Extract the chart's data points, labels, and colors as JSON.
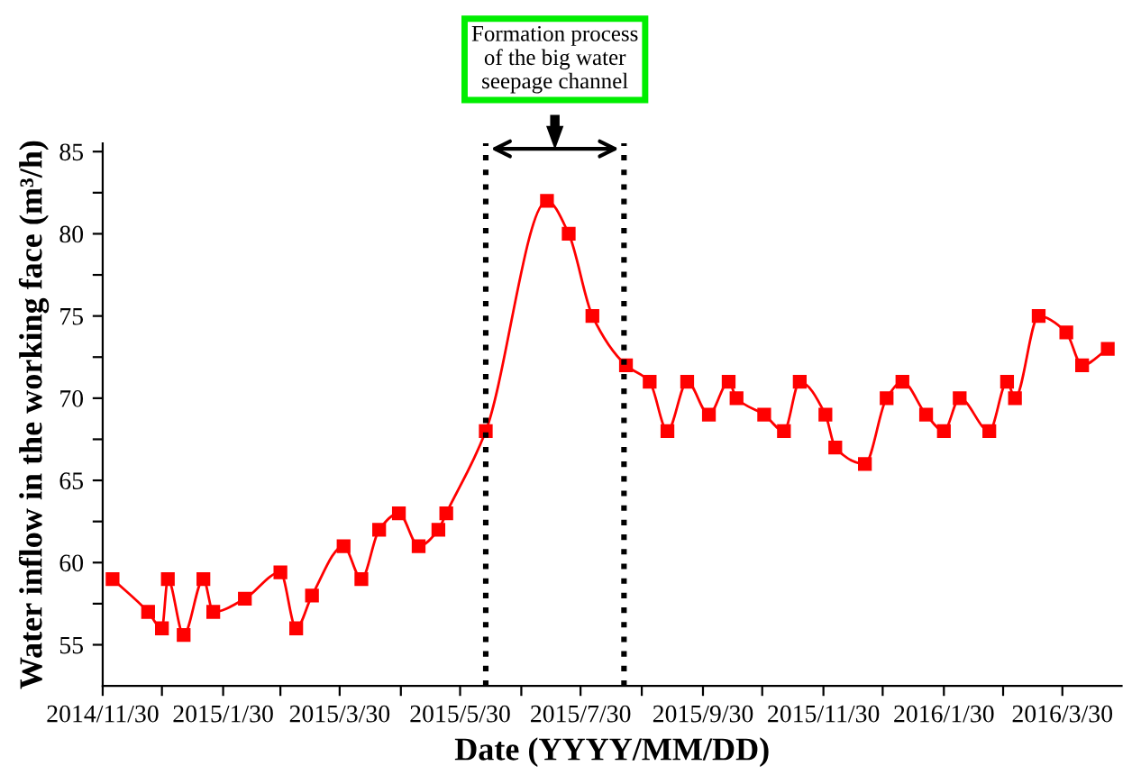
{
  "chart_data": {
    "type": "line",
    "xlabel": "Date (YYYY/MM/DD)",
    "ylabel": "Water inflow in the working face (m³/h)",
    "x": [
      "2014-12-05",
      "2014-12-23",
      "2014-12-30",
      "2015-01-02",
      "2015-01-10",
      "2015-01-20",
      "2015-01-25",
      "2015-02-10",
      "2015-02-28",
      "2015-03-08",
      "2015-03-16",
      "2015-04-01",
      "2015-04-10",
      "2015-04-19",
      "2015-04-29",
      "2015-05-09",
      "2015-05-19",
      "2015-05-23",
      "2015-06-12",
      "2015-07-13",
      "2015-07-24",
      "2015-08-05",
      "2015-08-22",
      "2015-09-03",
      "2015-09-12",
      "2015-09-22",
      "2015-10-03",
      "2015-10-13",
      "2015-10-17",
      "2015-10-31",
      "2015-11-10",
      "2015-11-18",
      "2015-12-01",
      "2015-12-06",
      "2015-12-21",
      "2016-01-01",
      "2016-01-09",
      "2016-01-21",
      "2016-01-30",
      "2016-02-07",
      "2016-02-22",
      "2016-03-02",
      "2016-03-06",
      "2016-03-18",
      "2016-04-01",
      "2016-04-09",
      "2016-04-22"
    ],
    "series": [
      {
        "color": "#ff0000",
        "values": [
          59,
          57,
          56,
          59,
          55.6,
          59,
          57,
          57.8,
          59.4,
          56,
          58,
          61,
          59,
          62,
          63,
          61,
          62,
          63,
          68,
          82,
          80,
          75,
          72,
          71,
          68,
          71,
          69,
          71,
          70,
          69,
          68,
          71,
          69,
          67,
          66,
          70,
          71,
          69,
          68,
          70,
          68,
          71,
          70,
          75,
          74,
          72,
          73
        ]
      }
    ],
    "marker": "square",
    "line_style": "solid",
    "grid": false,
    "legend": false,
    "xlim": [
      "2014-11-30",
      "2016-04-29"
    ],
    "xticks": [
      {
        "value": "2014-11-30",
        "label": "2014/11/30"
      },
      {
        "value": "2014-12-30",
        "label": null
      },
      {
        "value": "2015-01-30",
        "label": "2015/1/30"
      },
      {
        "value": "2015-02-28",
        "label": null
      },
      {
        "value": "2015-03-30",
        "label": "2015/3/30"
      },
      {
        "value": "2015-04-30",
        "label": null
      },
      {
        "value": "2015-05-30",
        "label": "2015/5/30"
      },
      {
        "value": "2015-06-30",
        "label": null
      },
      {
        "value": "2015-07-30",
        "label": "2015/7/30"
      },
      {
        "value": "2015-08-30",
        "label": null
      },
      {
        "value": "2015-09-30",
        "label": "2015/9/30"
      },
      {
        "value": "2015-10-30",
        "label": null
      },
      {
        "value": "2015-11-30",
        "label": "2015/11/30"
      },
      {
        "value": "2015-12-30",
        "label": null
      },
      {
        "value": "2016-01-30",
        "label": "2016/1/30"
      },
      {
        "value": "2016-02-29",
        "label": null
      },
      {
        "value": "2016-03-30",
        "label": "2016/3/30"
      }
    ],
    "ylim": [
      52.5,
      85.5
    ],
    "yticks": [
      55,
      {
        "value": 57.5,
        "label": null
      },
      60,
      {
        "value": 62.5,
        "label": null
      },
      65,
      {
        "value": 67.5,
        "label": null
      },
      70,
      {
        "value": 72.5,
        "label": null
      },
      75,
      {
        "value": 77.5,
        "label": null
      },
      80,
      {
        "value": 82.5,
        "label": null
      },
      85
    ],
    "ref_lines": [
      {
        "axis": "x",
        "value": "2015-06-12",
        "label": null,
        "color": "#000000",
        "line_style": "dotted"
      },
      {
        "axis": "x",
        "value": "2015-08-21",
        "label": null,
        "color": "#000000",
        "line_style": "dotted"
      }
    ],
    "annotations": [
      "Formation process\nof the big water\nseepage channel"
    ]
  }
}
